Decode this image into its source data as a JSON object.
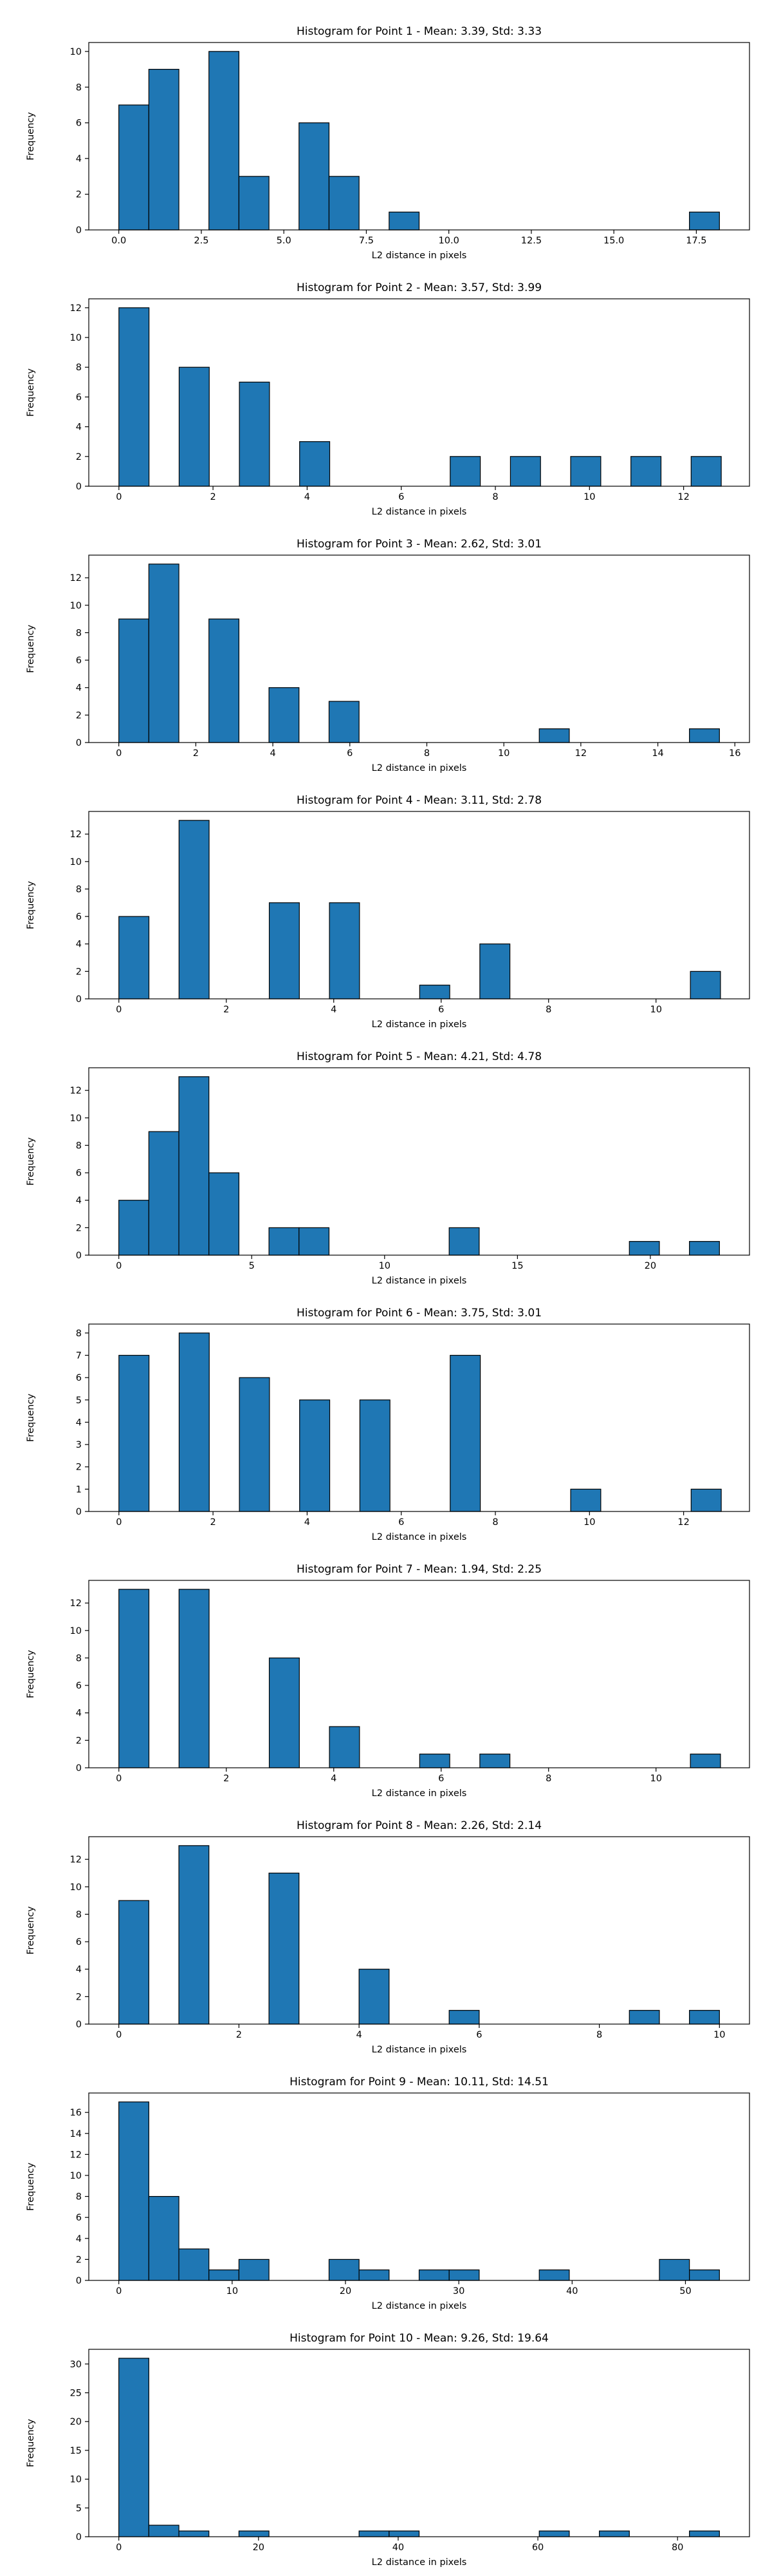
{
  "figure": {
    "bar_color": "#1f77b4",
    "edge_color": "#000000"
  },
  "chart_data": [
    {
      "type": "bar",
      "title": "Histogram for Point 1 - Mean: 3.39, Std: 3.33",
      "xlabel": "L2 distance in pixels",
      "ylabel": "Frequency",
      "xlim": [
        -0.91,
        19.11
      ],
      "ylim": [
        0,
        10.5
      ],
      "xticks": [
        0.0,
        2.5,
        5.0,
        7.5,
        10.0,
        12.5,
        15.0,
        17.5
      ],
      "xtick_labels": [
        "0.0",
        "2.5",
        "5.0",
        "7.5",
        "10.0",
        "12.5",
        "15.0",
        "17.5"
      ],
      "yticks": [
        0,
        2,
        4,
        6,
        8,
        10
      ],
      "ytick_labels": [
        "0",
        "2",
        "4",
        "6",
        "8",
        "10"
      ],
      "bins": [
        {
          "x0": 0.0,
          "x1": 0.91,
          "count": 7
        },
        {
          "x0": 0.91,
          "x1": 1.82,
          "count": 9
        },
        {
          "x0": 2.73,
          "x1": 3.64,
          "count": 10
        },
        {
          "x0": 3.64,
          "x1": 4.55,
          "count": 3
        },
        {
          "x0": 5.46,
          "x1": 6.37,
          "count": 6
        },
        {
          "x0": 6.37,
          "x1": 7.28,
          "count": 3
        },
        {
          "x0": 8.19,
          "x1": 9.1,
          "count": 1
        },
        {
          "x0": 17.29,
          "x1": 18.2,
          "count": 1
        }
      ]
    },
    {
      "type": "bar",
      "title": "Histogram for Point 2 - Mean: 3.57, Std: 3.99",
      "xlabel": "L2 distance in pixels",
      "ylabel": "Frequency",
      "xlim": [
        -0.64,
        13.4
      ],
      "ylim": [
        0,
        12.6
      ],
      "xticks": [
        0,
        2,
        4,
        6,
        8,
        10,
        12
      ],
      "xtick_labels": [
        "0",
        "2",
        "4",
        "6",
        "8",
        "10",
        "12"
      ],
      "yticks": [
        0,
        2,
        4,
        6,
        8,
        10,
        12
      ],
      "ytick_labels": [
        "0",
        "2",
        "4",
        "6",
        "8",
        "10",
        "12"
      ],
      "bins": [
        {
          "x0": 0.0,
          "x1": 0.64,
          "count": 12
        },
        {
          "x0": 1.28,
          "x1": 1.92,
          "count": 8
        },
        {
          "x0": 2.56,
          "x1": 3.2,
          "count": 7
        },
        {
          "x0": 3.84,
          "x1": 4.48,
          "count": 3
        },
        {
          "x0": 7.04,
          "x1": 7.68,
          "count": 2
        },
        {
          "x0": 8.32,
          "x1": 8.96,
          "count": 2
        },
        {
          "x0": 9.6,
          "x1": 10.24,
          "count": 2
        },
        {
          "x0": 10.88,
          "x1": 11.52,
          "count": 2
        },
        {
          "x0": 12.16,
          "x1": 12.8,
          "count": 2
        }
      ]
    },
    {
      "type": "bar",
      "title": "Histogram for Point 3 - Mean: 2.62, Std: 3.01",
      "xlabel": "L2 distance in pixels",
      "ylabel": "Frequency",
      "xlim": [
        -0.78,
        16.38
      ],
      "ylim": [
        0,
        13.65
      ],
      "xticks": [
        0,
        2,
        4,
        6,
        8,
        10,
        12,
        14,
        16
      ],
      "xtick_labels": [
        "0",
        "2",
        "4",
        "6",
        "8",
        "10",
        "12",
        "14",
        "16"
      ],
      "yticks": [
        0,
        2,
        4,
        6,
        8,
        10,
        12
      ],
      "ytick_labels": [
        "0",
        "2",
        "4",
        "6",
        "8",
        "10",
        "12"
      ],
      "bins": [
        {
          "x0": 0.0,
          "x1": 0.78,
          "count": 9
        },
        {
          "x0": 0.78,
          "x1": 1.56,
          "count": 13
        },
        {
          "x0": 2.34,
          "x1": 3.12,
          "count": 9
        },
        {
          "x0": 3.9,
          "x1": 4.68,
          "count": 4
        },
        {
          "x0": 5.46,
          "x1": 6.24,
          "count": 3
        },
        {
          "x0": 10.92,
          "x1": 11.7,
          "count": 1
        },
        {
          "x0": 14.82,
          "x1": 15.6,
          "count": 1
        }
      ]
    },
    {
      "type": "bar",
      "title": "Histogram for Point 4 - Mean: 3.11, Std: 2.78",
      "xlabel": "L2 distance in pixels",
      "ylabel": "Frequency",
      "xlim": [
        -0.56,
        11.74
      ],
      "ylim": [
        0,
        13.65
      ],
      "xticks": [
        0,
        2,
        4,
        6,
        8,
        10
      ],
      "xtick_labels": [
        "0",
        "2",
        "4",
        "6",
        "8",
        "10"
      ],
      "yticks": [
        0,
        2,
        4,
        6,
        8,
        10,
        12
      ],
      "ytick_labels": [
        "0",
        "2",
        "4",
        "6",
        "8",
        "10",
        "12"
      ],
      "bins": [
        {
          "x0": 0.0,
          "x1": 0.56,
          "count": 6
        },
        {
          "x0": 1.12,
          "x1": 1.68,
          "count": 13
        },
        {
          "x0": 2.8,
          "x1": 3.36,
          "count": 7
        },
        {
          "x0": 3.92,
          "x1": 4.48,
          "count": 7
        },
        {
          "x0": 5.6,
          "x1": 6.16,
          "count": 1
        },
        {
          "x0": 6.72,
          "x1": 7.28,
          "count": 4
        },
        {
          "x0": 10.64,
          "x1": 11.2,
          "count": 2
        }
      ]
    },
    {
      "type": "bar",
      "title": "Histogram for Point 5 - Mean: 4.21, Std: 4.78",
      "xlabel": "L2 distance in pixels",
      "ylabel": "Frequency",
      "xlim": [
        -1.13,
        23.73
      ],
      "ylim": [
        0,
        13.65
      ],
      "xticks": [
        0,
        5,
        10,
        15,
        20
      ],
      "xtick_labels": [
        "0",
        "5",
        "10",
        "15",
        "20"
      ],
      "yticks": [
        0,
        2,
        4,
        6,
        8,
        10,
        12
      ],
      "ytick_labels": [
        "0",
        "2",
        "4",
        "6",
        "8",
        "10",
        "12"
      ],
      "bins": [
        {
          "x0": 0.0,
          "x1": 1.13,
          "count": 4
        },
        {
          "x0": 1.13,
          "x1": 2.26,
          "count": 9
        },
        {
          "x0": 2.26,
          "x1": 3.39,
          "count": 13
        },
        {
          "x0": 3.39,
          "x1": 4.52,
          "count": 6
        },
        {
          "x0": 5.65,
          "x1": 6.78,
          "count": 2
        },
        {
          "x0": 6.78,
          "x1": 7.91,
          "count": 2
        },
        {
          "x0": 12.43,
          "x1": 13.56,
          "count": 2
        },
        {
          "x0": 19.21,
          "x1": 20.34,
          "count": 1
        },
        {
          "x0": 21.47,
          "x1": 22.6,
          "count": 1
        }
      ]
    },
    {
      "type": "bar",
      "title": "Histogram for Point 6 - Mean: 3.75, Std: 3.01",
      "xlabel": "L2 distance in pixels",
      "ylabel": "Frequency",
      "xlim": [
        -0.64,
        13.4
      ],
      "ylim": [
        0,
        8.4
      ],
      "xticks": [
        0,
        2,
        4,
        6,
        8,
        10,
        12
      ],
      "xtick_labels": [
        "0",
        "2",
        "4",
        "6",
        "8",
        "10",
        "12"
      ],
      "yticks": [
        0,
        1,
        2,
        3,
        4,
        5,
        6,
        7,
        8
      ],
      "ytick_labels": [
        "0",
        "1",
        "2",
        "3",
        "4",
        "5",
        "6",
        "7",
        "8"
      ],
      "bins": [
        {
          "x0": 0.0,
          "x1": 0.64,
          "count": 7
        },
        {
          "x0": 1.28,
          "x1": 1.92,
          "count": 8
        },
        {
          "x0": 2.56,
          "x1": 3.2,
          "count": 6
        },
        {
          "x0": 3.84,
          "x1": 4.48,
          "count": 5
        },
        {
          "x0": 5.12,
          "x1": 5.76,
          "count": 5
        },
        {
          "x0": 7.04,
          "x1": 7.68,
          "count": 7
        },
        {
          "x0": 9.6,
          "x1": 10.24,
          "count": 1
        },
        {
          "x0": 12.16,
          "x1": 12.8,
          "count": 1
        }
      ]
    },
    {
      "type": "bar",
      "title": "Histogram for Point 7 - Mean: 1.94, Std: 2.25",
      "xlabel": "L2 distance in pixels",
      "ylabel": "Frequency",
      "xlim": [
        -0.56,
        11.74
      ],
      "ylim": [
        0,
        13.65
      ],
      "xticks": [
        0,
        2,
        4,
        6,
        8,
        10
      ],
      "xtick_labels": [
        "0",
        "2",
        "4",
        "6",
        "8",
        "10"
      ],
      "yticks": [
        0,
        2,
        4,
        6,
        8,
        10,
        12
      ],
      "ytick_labels": [
        "0",
        "2",
        "4",
        "6",
        "8",
        "10",
        "12"
      ],
      "bins": [
        {
          "x0": 0.0,
          "x1": 0.56,
          "count": 13
        },
        {
          "x0": 1.12,
          "x1": 1.68,
          "count": 13
        },
        {
          "x0": 2.8,
          "x1": 3.36,
          "count": 8
        },
        {
          "x0": 3.92,
          "x1": 4.48,
          "count": 3
        },
        {
          "x0": 5.6,
          "x1": 6.16,
          "count": 1
        },
        {
          "x0": 6.72,
          "x1": 7.28,
          "count": 1
        },
        {
          "x0": 10.64,
          "x1": 11.2,
          "count": 1
        }
      ]
    },
    {
      "type": "bar",
      "title": "Histogram for Point 8 - Mean: 2.26, Std: 2.14",
      "xlabel": "L2 distance in pixels",
      "ylabel": "Frequency",
      "xlim": [
        -0.5,
        10.5
      ],
      "ylim": [
        0,
        13.65
      ],
      "xticks": [
        0,
        2,
        4,
        6,
        8,
        10
      ],
      "xtick_labels": [
        "0",
        "2",
        "4",
        "6",
        "8",
        "10"
      ],
      "yticks": [
        0,
        2,
        4,
        6,
        8,
        10,
        12
      ],
      "ytick_labels": [
        "0",
        "2",
        "4",
        "6",
        "8",
        "10",
        "12"
      ],
      "bins": [
        {
          "x0": 0.0,
          "x1": 0.5,
          "count": 9
        },
        {
          "x0": 1.0,
          "x1": 1.5,
          "count": 13
        },
        {
          "x0": 2.5,
          "x1": 3.0,
          "count": 11
        },
        {
          "x0": 4.0,
          "x1": 4.5,
          "count": 4
        },
        {
          "x0": 5.5,
          "x1": 6.0,
          "count": 1
        },
        {
          "x0": 8.5,
          "x1": 9.0,
          "count": 1
        },
        {
          "x0": 9.5,
          "x1": 10.0,
          "count": 1
        }
      ]
    },
    {
      "type": "bar",
      "title": "Histogram for Point 9 - Mean: 10.11, Std: 14.51",
      "xlabel": "L2 distance in pixels",
      "ylabel": "Frequency",
      "xlim": [
        -2.65,
        55.65
      ],
      "ylim": [
        0,
        17.85
      ],
      "xticks": [
        0,
        10,
        20,
        30,
        40,
        50
      ],
      "xtick_labels": [
        "0",
        "10",
        "20",
        "30",
        "40",
        "50"
      ],
      "yticks": [
        0,
        2,
        4,
        6,
        8,
        10,
        12,
        14,
        16
      ],
      "ytick_labels": [
        "0",
        "2",
        "4",
        "6",
        "8",
        "10",
        "12",
        "14",
        "16"
      ],
      "bins": [
        {
          "x0": 0.0,
          "x1": 2.65,
          "count": 17
        },
        {
          "x0": 2.65,
          "x1": 5.3,
          "count": 8
        },
        {
          "x0": 5.3,
          "x1": 7.95,
          "count": 3
        },
        {
          "x0": 7.95,
          "x1": 10.6,
          "count": 1
        },
        {
          "x0": 10.6,
          "x1": 13.25,
          "count": 2
        },
        {
          "x0": 18.55,
          "x1": 21.2,
          "count": 2
        },
        {
          "x0": 21.2,
          "x1": 23.85,
          "count": 1
        },
        {
          "x0": 26.5,
          "x1": 29.15,
          "count": 1
        },
        {
          "x0": 29.15,
          "x1": 31.8,
          "count": 1
        },
        {
          "x0": 37.1,
          "x1": 39.75,
          "count": 1
        },
        {
          "x0": 47.7,
          "x1": 50.35,
          "count": 2
        },
        {
          "x0": 50.35,
          "x1": 53.0,
          "count": 1
        }
      ]
    },
    {
      "type": "bar",
      "title": "Histogram for Point 10 - Mean: 9.26, Std: 19.64",
      "xlabel": "L2 distance in pixels",
      "ylabel": "Frequency",
      "xlim": [
        -4.3,
        90.3
      ],
      "ylim": [
        0,
        32.55
      ],
      "xticks": [
        0,
        20,
        40,
        60,
        80
      ],
      "xtick_labels": [
        "0",
        "20",
        "40",
        "60",
        "80"
      ],
      "yticks": [
        0,
        5,
        10,
        15,
        20,
        25,
        30
      ],
      "ytick_labels": [
        "0",
        "5",
        "10",
        "15",
        "20",
        "25",
        "30"
      ],
      "bins": [
        {
          "x0": 0.0,
          "x1": 4.3,
          "count": 31
        },
        {
          "x0": 4.3,
          "x1": 8.6,
          "count": 2
        },
        {
          "x0": 8.6,
          "x1": 12.9,
          "count": 1
        },
        {
          "x0": 17.2,
          "x1": 21.5,
          "count": 1
        },
        {
          "x0": 34.4,
          "x1": 38.7,
          "count": 1
        },
        {
          "x0": 38.7,
          "x1": 43.0,
          "count": 1
        },
        {
          "x0": 60.2,
          "x1": 64.5,
          "count": 1
        },
        {
          "x0": 68.8,
          "x1": 73.1,
          "count": 1
        },
        {
          "x0": 81.7,
          "x1": 86.0,
          "count": 1
        }
      ]
    }
  ]
}
